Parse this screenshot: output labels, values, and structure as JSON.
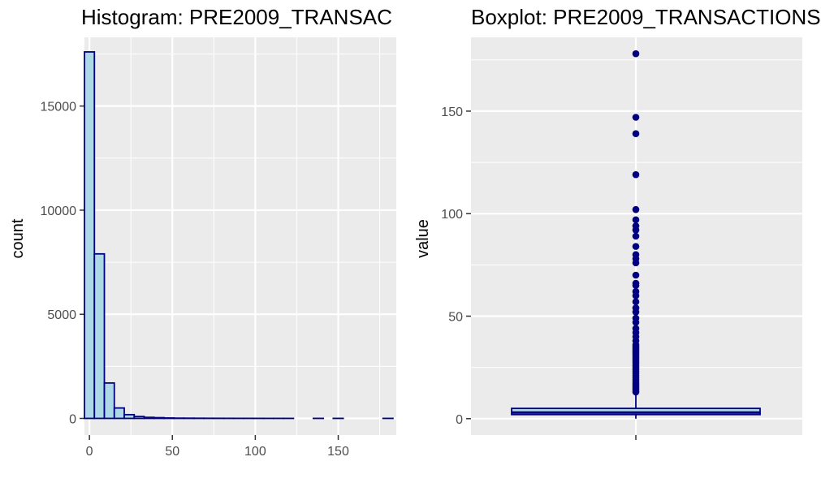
{
  "chart_data": [
    {
      "type": "bar",
      "title": "Histogram: PRE2009_TRANSAC",
      "xlabel": "",
      "ylabel": "count",
      "xlim": [
        -3,
        185
      ],
      "ylim": [
        -800,
        18300
      ],
      "x_ticks": [
        0,
        50,
        100,
        150
      ],
      "y_ticks": [
        0,
        5000,
        10000,
        15000
      ],
      "grid": true,
      "bin_width": 6,
      "bins": [
        {
          "x0": -3,
          "x1": 3,
          "count": 17600
        },
        {
          "x0": 3,
          "x1": 9,
          "count": 7900
        },
        {
          "x0": 9,
          "x1": 15,
          "count": 1700
        },
        {
          "x0": 15,
          "x1": 21,
          "count": 500
        },
        {
          "x0": 21,
          "x1": 27,
          "count": 180
        },
        {
          "x0": 27,
          "x1": 33,
          "count": 90
        },
        {
          "x0": 33,
          "x1": 39,
          "count": 50
        },
        {
          "x0": 39,
          "x1": 45,
          "count": 35
        },
        {
          "x0": 45,
          "x1": 51,
          "count": 20
        },
        {
          "x0": 51,
          "x1": 57,
          "count": 12
        },
        {
          "x0": 57,
          "x1": 63,
          "count": 10
        },
        {
          "x0": 63,
          "x1": 69,
          "count": 8
        },
        {
          "x0": 69,
          "x1": 75,
          "count": 6
        },
        {
          "x0": 75,
          "x1": 81,
          "count": 5
        },
        {
          "x0": 81,
          "x1": 87,
          "count": 4
        },
        {
          "x0": 87,
          "x1": 93,
          "count": 3
        },
        {
          "x0": 93,
          "x1": 99,
          "count": 3
        },
        {
          "x0": 99,
          "x1": 105,
          "count": 2
        },
        {
          "x0": 105,
          "x1": 111,
          "count": 1
        },
        {
          "x0": 111,
          "x1": 117,
          "count": 1
        },
        {
          "x0": 117,
          "x1": 123,
          "count": 1
        },
        {
          "x0": 123,
          "x1": 129,
          "count": 0
        },
        {
          "x0": 129,
          "x1": 135,
          "count": 0
        },
        {
          "x0": 135,
          "x1": 141,
          "count": 1
        },
        {
          "x0": 141,
          "x1": 147,
          "count": 0
        },
        {
          "x0": 147,
          "x1": 153,
          "count": 1
        },
        {
          "x0": 153,
          "x1": 159,
          "count": 0
        },
        {
          "x0": 159,
          "x1": 165,
          "count": 0
        },
        {
          "x0": 165,
          "x1": 171,
          "count": 0
        },
        {
          "x0": 171,
          "x1": 177,
          "count": 0
        },
        {
          "x0": 177,
          "x1": 183,
          "count": 1
        }
      ],
      "fill_color": "#ADD8E6",
      "stroke_color": "#000080"
    },
    {
      "type": "boxplot",
      "title": "Boxplot: PRE2009_TRANSACTIONS",
      "xlabel": "",
      "ylabel": "value",
      "ylim": [
        -8,
        186
      ],
      "y_ticks": [
        0,
        50,
        100,
        150
      ],
      "grid": true,
      "box": {
        "lower_whisker": 0,
        "q1": 2,
        "median": 3,
        "q3": 5,
        "upper_whisker": 12
      },
      "outliers": [
        13,
        14,
        15,
        16,
        17,
        18,
        19,
        20,
        21,
        22,
        23,
        24,
        25,
        26,
        27,
        28,
        29,
        30,
        31,
        32,
        33,
        34,
        35,
        36,
        38,
        40,
        42,
        44,
        47,
        49,
        52,
        54,
        57,
        60,
        62,
        65,
        66,
        70,
        76,
        78,
        80,
        84,
        89,
        92,
        94,
        97,
        102,
        119,
        139,
        147,
        178
      ],
      "fill_color": "#ADD8E6",
      "stroke_color": "#000080",
      "point_color": "#000080"
    }
  ]
}
